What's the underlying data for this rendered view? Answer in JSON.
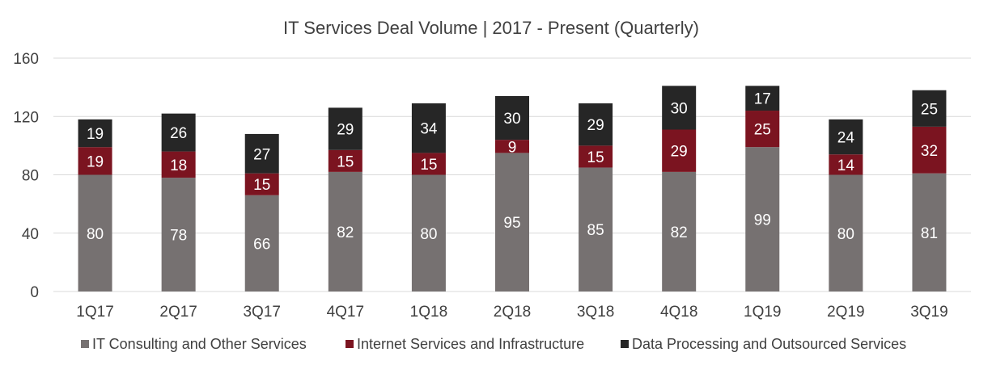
{
  "chart_data": {
    "type": "bar",
    "stacked": true,
    "title": "IT Services Deal Volume | 2017 - Present (Quarterly)",
    "xlabel": "",
    "ylabel": "",
    "categories": [
      "1Q17",
      "2Q17",
      "3Q17",
      "4Q17",
      "1Q18",
      "2Q18",
      "3Q18",
      "4Q18",
      "1Q19",
      "2Q19",
      "3Q19"
    ],
    "ylim": [
      0,
      160
    ],
    "yticks": [
      0,
      40,
      80,
      120,
      160
    ],
    "grid": true,
    "legend": "bottom",
    "series": [
      {
        "name": "IT Consulting and Other Services",
        "color": "#767171",
        "values": [
          80,
          78,
          66,
          82,
          80,
          95,
          85,
          82,
          99,
          80,
          81
        ]
      },
      {
        "name": "Internet Services and Infrastructure",
        "color": "#7b1420",
        "values": [
          19,
          18,
          15,
          15,
          15,
          9,
          15,
          29,
          25,
          14,
          32
        ]
      },
      {
        "name": "Data Processing and Outsourced Services",
        "color": "#262626",
        "values": [
          19,
          26,
          27,
          29,
          34,
          30,
          29,
          30,
          17,
          24,
          25
        ]
      }
    ]
  }
}
